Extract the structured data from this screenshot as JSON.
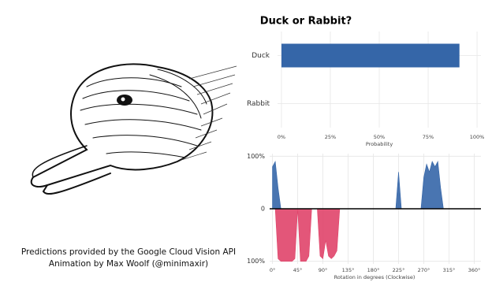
{
  "caption": [
    "Predictions provided by the Google Cloud Vision API",
    "Animation by Max Woolf (@minimaxir)"
  ],
  "chart_data": [
    {
      "type": "bar",
      "title": "Duck or Rabbit?",
      "xlabel": "Probability",
      "categories": [
        "Duck",
        "Rabbit"
      ],
      "values": [
        91,
        0
      ],
      "color": "#3566a8",
      "xlim": [
        -2,
        102
      ],
      "xticks": [
        {
          "value": 0,
          "label": "0%"
        },
        {
          "value": 25,
          "label": "25%"
        },
        {
          "value": 50,
          "label": "50%"
        },
        {
          "value": 75,
          "label": "75%"
        },
        {
          "value": 100,
          "label": "100%"
        }
      ],
      "grid": true
    },
    {
      "type": "area",
      "xlabel": "Rotation in degrees (Clockwise)",
      "x": [
        0,
        5,
        10,
        15,
        20,
        25,
        30,
        35,
        40,
        45,
        50,
        55,
        60,
        65,
        70,
        75,
        80,
        85,
        90,
        95,
        100,
        105,
        110,
        115,
        120,
        125,
        130,
        135,
        140,
        145,
        150,
        155,
        160,
        165,
        170,
        175,
        180,
        185,
        190,
        195,
        200,
        205,
        210,
        215,
        220,
        225,
        230,
        235,
        240,
        245,
        250,
        255,
        260,
        265,
        270,
        275,
        280,
        285,
        290,
        295,
        300,
        305,
        310,
        315,
        320,
        325,
        330,
        335,
        340,
        345,
        350,
        355,
        360
      ],
      "series": [
        {
          "name": "Duck",
          "color": "#3566a8",
          "values": [
            80,
            90,
            40,
            0,
            0,
            0,
            0,
            0,
            0,
            0,
            0,
            0,
            0,
            0,
            0,
            0,
            0,
            0,
            0,
            0,
            0,
            0,
            0,
            0,
            0,
            0,
            0,
            0,
            0,
            0,
            0,
            0,
            0,
            0,
            0,
            0,
            0,
            0,
            0,
            0,
            0,
            0,
            0,
            0,
            0,
            70,
            0,
            0,
            0,
            0,
            0,
            0,
            0,
            0,
            60,
            85,
            70,
            90,
            80,
            90,
            40,
            0,
            0,
            0,
            0,
            0,
            0,
            0,
            0,
            0,
            0,
            0,
            0
          ]
        },
        {
          "name": "Rabbit",
          "color": "#e0446a",
          "values": [
            0,
            0,
            -95,
            -100,
            -100,
            -100,
            -100,
            -100,
            -95,
            0,
            -100,
            -100,
            -100,
            -90,
            0,
            0,
            0,
            -90,
            -95,
            -60,
            -90,
            -95,
            -90,
            -80,
            0,
            0,
            0,
            0,
            0,
            0,
            0,
            0,
            0,
            0,
            0,
            0,
            0,
            0,
            0,
            0,
            0,
            0,
            0,
            0,
            0,
            0,
            0,
            0,
            0,
            0,
            0,
            0,
            0,
            0,
            0,
            0,
            0,
            0,
            0,
            0,
            0,
            0,
            0,
            0,
            0,
            0,
            0,
            0,
            0,
            0,
            0,
            0,
            0
          ]
        }
      ],
      "xlim": [
        -5,
        372
      ],
      "xticks": [
        {
          "value": 0,
          "label": "0°"
        },
        {
          "value": 45,
          "label": "45°"
        },
        {
          "value": 90,
          "label": "90°"
        },
        {
          "value": 135,
          "label": "135°"
        },
        {
          "value": 180,
          "label": "180°"
        },
        {
          "value": 225,
          "label": "225°"
        },
        {
          "value": 270,
          "label": "270°"
        },
        {
          "value": 315,
          "label": "315°"
        },
        {
          "value": 360,
          "label": "360°"
        }
      ],
      "ylim": [
        -105,
        105
      ],
      "yticks": [
        {
          "value": 100,
          "label": "100%"
        },
        0,
        {
          "value": -100,
          "label": "100%"
        }
      ],
      "grid": true
    }
  ]
}
